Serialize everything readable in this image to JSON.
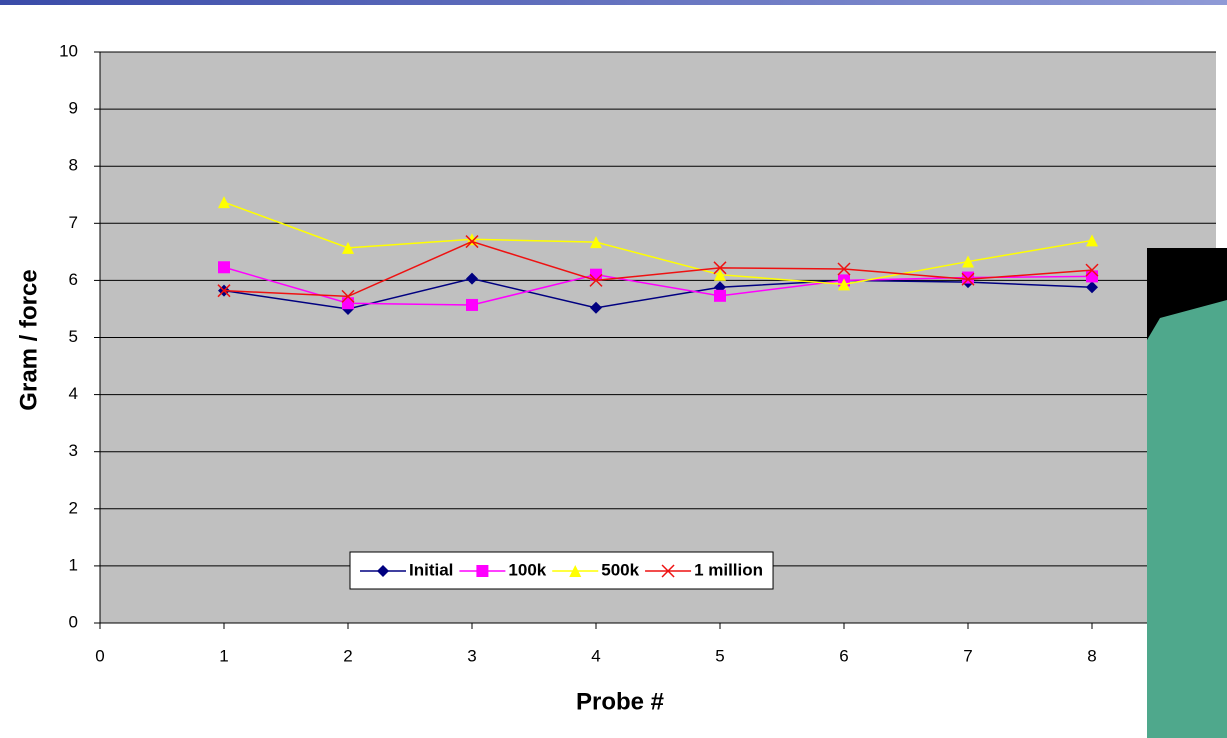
{
  "chart_data": {
    "type": "line",
    "x_label": "Probe #",
    "y_label": "Gram / force",
    "x": [
      1,
      2,
      3,
      4,
      5,
      6,
      7,
      8
    ],
    "series": [
      {
        "name": "Initial",
        "color": "#000080",
        "marker": "diamond",
        "values": [
          5.82,
          5.5,
          6.03,
          5.52,
          5.88,
          6.0,
          5.97,
          5.88
        ]
      },
      {
        "name": "100k",
        "color": "#ff00ff",
        "marker": "square",
        "values": [
          6.23,
          5.6,
          5.57,
          6.1,
          5.73,
          6.0,
          6.05,
          6.07
        ]
      },
      {
        "name": "500k",
        "color": "#ffff00",
        "marker": "triangle",
        "values": [
          7.37,
          6.57,
          6.72,
          6.67,
          6.1,
          5.93,
          6.33,
          6.7
        ]
      },
      {
        "name": "1 million",
        "color": "#ee1111",
        "marker": "x",
        "values": [
          5.82,
          5.72,
          6.68,
          6.0,
          6.22,
          6.2,
          6.02,
          6.18
        ]
      }
    ],
    "xlim": [
      0,
      9
    ],
    "xticks": [
      0,
      1,
      2,
      3,
      4,
      5,
      6,
      7,
      8
    ],
    "ylim": [
      0,
      10
    ],
    "yticks": [
      0,
      1,
      2,
      3,
      4,
      5,
      6,
      7,
      8,
      9,
      10
    ],
    "grid": true,
    "legend": "bottom"
  }
}
